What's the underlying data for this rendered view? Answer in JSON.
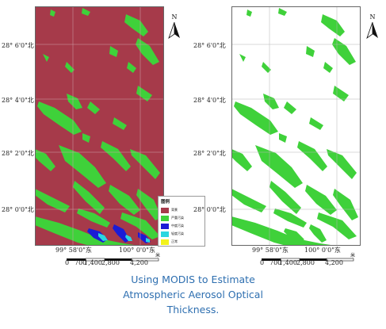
{
  "left_map": {
    "y_labels": [
      "28° 6'0\"北",
      "28° 4'0\"北",
      "28° 2'0\"北",
      "28° 0'0\"北"
    ],
    "x_labels": [
      "99° 58'0\"东",
      "100° 0'0\"东"
    ],
    "north_label": "N",
    "legend": {
      "title": "图例",
      "items": [
        {
          "label": "背景",
          "color": "#a63a4a"
        },
        {
          "label": "严重污染",
          "color": "#3fd13a"
        },
        {
          "label": "中度污染",
          "color": "#1b1bd6"
        },
        {
          "label": "轻度污染",
          "color": "#2bd6e0"
        },
        {
          "label": "正常",
          "color": "#f2f21c"
        }
      ]
    },
    "scale": {
      "unit": "米",
      "ticks": [
        "0",
        "700",
        "1,400",
        "2,800",
        "4,200"
      ]
    }
  },
  "right_map": {
    "y_labels": [
      "28° 6'0\"北",
      "28° 4'0\"北",
      "28° 2'0\"北",
      "28° 0'0\"北"
    ],
    "x_labels": [
      "99° 58'0\"东",
      "100° 0'0\"东"
    ],
    "north_label": "N",
    "scale": {
      "unit": "米",
      "ticks": [
        "0",
        "700",
        "1,400",
        "2,800",
        "4,200"
      ]
    }
  },
  "caption": {
    "line1": "Using MODIS to Estimate",
    "line2": "Atmospheric Aerosol Optical",
    "line3": "Thickness."
  },
  "colors": {
    "background_class": "#a63a4a",
    "vegetation": "#3fd13a",
    "water_blue": "#1b1bd6",
    "water_cyan": "#2bd6e0",
    "caption": "#2e6fb0"
  }
}
